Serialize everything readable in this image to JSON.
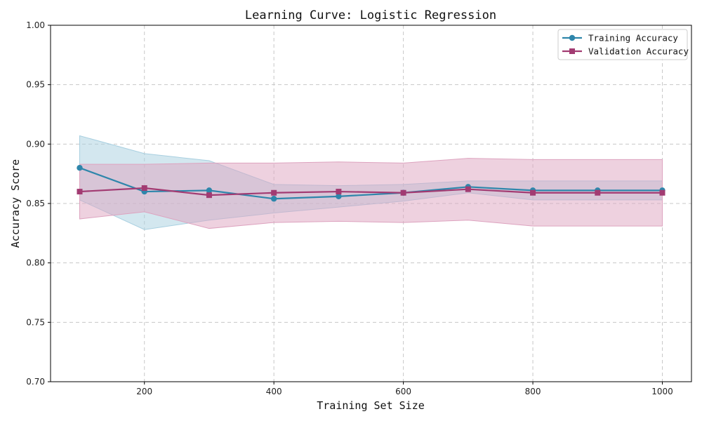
{
  "chart_data": {
    "type": "line",
    "title": "Learning Curve: Logistic Regression",
    "xlabel": "Training Set Size",
    "ylabel": "Accuracy Score",
    "xlim": [
      55,
      1045
    ],
    "ylim": [
      0.7,
      1.0
    ],
    "x_ticks": [
      200,
      400,
      600,
      800,
      1000
    ],
    "y_ticks": [
      0.7,
      0.75,
      0.8,
      0.85,
      0.9,
      0.95,
      1.0
    ],
    "y_tick_labels": [
      "0.70",
      "0.75",
      "0.80",
      "0.85",
      "0.90",
      "0.95",
      "1.00"
    ],
    "grid": true,
    "legend_position": "top-right",
    "x": [
      100,
      200,
      300,
      400,
      500,
      600,
      700,
      800,
      900,
      1000
    ],
    "series": [
      {
        "name": "Training Accuracy",
        "color": "#2E86AB",
        "fill_color": "#A8CFE0",
        "marker": "circle",
        "values": [
          0.88,
          0.86,
          0.861,
          0.854,
          0.856,
          0.859,
          0.864,
          0.861,
          0.861,
          0.861
        ],
        "upper": [
          0.907,
          0.892,
          0.886,
          0.866,
          0.865,
          0.866,
          0.869,
          0.869,
          0.869,
          0.869
        ],
        "lower": [
          0.853,
          0.828,
          0.836,
          0.842,
          0.847,
          0.852,
          0.859,
          0.853,
          0.853,
          0.853
        ]
      },
      {
        "name": "Validation Accuracy",
        "color": "#A23B72",
        "fill_color": "#DDA3BF",
        "marker": "square",
        "values": [
          0.86,
          0.863,
          0.857,
          0.859,
          0.86,
          0.859,
          0.862,
          0.859,
          0.859,
          0.859
        ],
        "upper": [
          0.883,
          0.883,
          0.884,
          0.884,
          0.885,
          0.884,
          0.888,
          0.887,
          0.887,
          0.887
        ],
        "lower": [
          0.837,
          0.843,
          0.829,
          0.834,
          0.835,
          0.834,
          0.836,
          0.831,
          0.831,
          0.831
        ]
      }
    ]
  }
}
